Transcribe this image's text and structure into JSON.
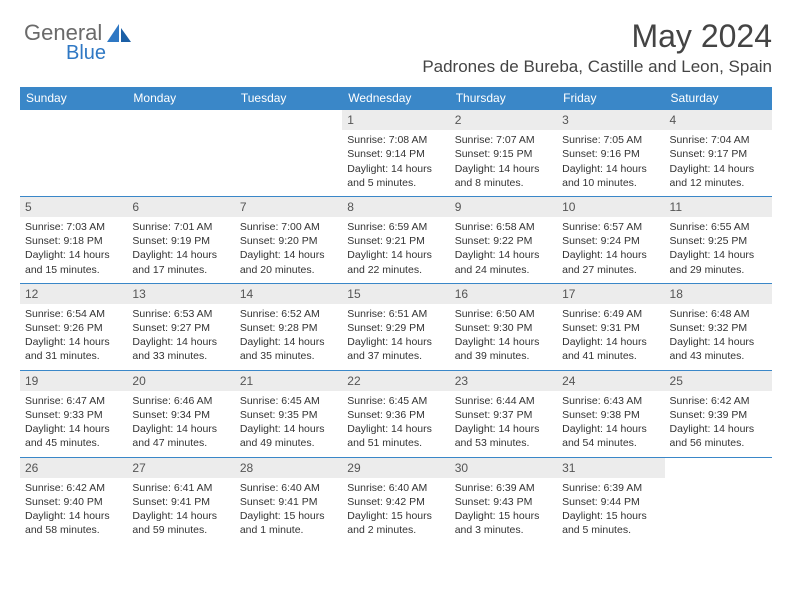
{
  "logo": {
    "text1": "General",
    "text2": "Blue"
  },
  "title": "May 2024",
  "location": "Padrones de Bureba, Castille and Leon, Spain",
  "colors": {
    "header_bg": "#3a87c8",
    "header_text": "#ffffff",
    "daynum_bg": "#ececec",
    "border": "#3a87c8",
    "logo_blue": "#2f78c4"
  },
  "day_names": [
    "Sunday",
    "Monday",
    "Tuesday",
    "Wednesday",
    "Thursday",
    "Friday",
    "Saturday"
  ],
  "weeks": [
    [
      {
        "n": "",
        "empty": true
      },
      {
        "n": "",
        "empty": true
      },
      {
        "n": "",
        "empty": true
      },
      {
        "n": "1",
        "sr": "Sunrise: 7:08 AM",
        "ss": "Sunset: 9:14 PM",
        "d1": "Daylight: 14 hours",
        "d2": "and 5 minutes."
      },
      {
        "n": "2",
        "sr": "Sunrise: 7:07 AM",
        "ss": "Sunset: 9:15 PM",
        "d1": "Daylight: 14 hours",
        "d2": "and 8 minutes."
      },
      {
        "n": "3",
        "sr": "Sunrise: 7:05 AM",
        "ss": "Sunset: 9:16 PM",
        "d1": "Daylight: 14 hours",
        "d2": "and 10 minutes."
      },
      {
        "n": "4",
        "sr": "Sunrise: 7:04 AM",
        "ss": "Sunset: 9:17 PM",
        "d1": "Daylight: 14 hours",
        "d2": "and 12 minutes."
      }
    ],
    [
      {
        "n": "5",
        "sr": "Sunrise: 7:03 AM",
        "ss": "Sunset: 9:18 PM",
        "d1": "Daylight: 14 hours",
        "d2": "and 15 minutes."
      },
      {
        "n": "6",
        "sr": "Sunrise: 7:01 AM",
        "ss": "Sunset: 9:19 PM",
        "d1": "Daylight: 14 hours",
        "d2": "and 17 minutes."
      },
      {
        "n": "7",
        "sr": "Sunrise: 7:00 AM",
        "ss": "Sunset: 9:20 PM",
        "d1": "Daylight: 14 hours",
        "d2": "and 20 minutes."
      },
      {
        "n": "8",
        "sr": "Sunrise: 6:59 AM",
        "ss": "Sunset: 9:21 PM",
        "d1": "Daylight: 14 hours",
        "d2": "and 22 minutes."
      },
      {
        "n": "9",
        "sr": "Sunrise: 6:58 AM",
        "ss": "Sunset: 9:22 PM",
        "d1": "Daylight: 14 hours",
        "d2": "and 24 minutes."
      },
      {
        "n": "10",
        "sr": "Sunrise: 6:57 AM",
        "ss": "Sunset: 9:24 PM",
        "d1": "Daylight: 14 hours",
        "d2": "and 27 minutes."
      },
      {
        "n": "11",
        "sr": "Sunrise: 6:55 AM",
        "ss": "Sunset: 9:25 PM",
        "d1": "Daylight: 14 hours",
        "d2": "and 29 minutes."
      }
    ],
    [
      {
        "n": "12",
        "sr": "Sunrise: 6:54 AM",
        "ss": "Sunset: 9:26 PM",
        "d1": "Daylight: 14 hours",
        "d2": "and 31 minutes."
      },
      {
        "n": "13",
        "sr": "Sunrise: 6:53 AM",
        "ss": "Sunset: 9:27 PM",
        "d1": "Daylight: 14 hours",
        "d2": "and 33 minutes."
      },
      {
        "n": "14",
        "sr": "Sunrise: 6:52 AM",
        "ss": "Sunset: 9:28 PM",
        "d1": "Daylight: 14 hours",
        "d2": "and 35 minutes."
      },
      {
        "n": "15",
        "sr": "Sunrise: 6:51 AM",
        "ss": "Sunset: 9:29 PM",
        "d1": "Daylight: 14 hours",
        "d2": "and 37 minutes."
      },
      {
        "n": "16",
        "sr": "Sunrise: 6:50 AM",
        "ss": "Sunset: 9:30 PM",
        "d1": "Daylight: 14 hours",
        "d2": "and 39 minutes."
      },
      {
        "n": "17",
        "sr": "Sunrise: 6:49 AM",
        "ss": "Sunset: 9:31 PM",
        "d1": "Daylight: 14 hours",
        "d2": "and 41 minutes."
      },
      {
        "n": "18",
        "sr": "Sunrise: 6:48 AM",
        "ss": "Sunset: 9:32 PM",
        "d1": "Daylight: 14 hours",
        "d2": "and 43 minutes."
      }
    ],
    [
      {
        "n": "19",
        "sr": "Sunrise: 6:47 AM",
        "ss": "Sunset: 9:33 PM",
        "d1": "Daylight: 14 hours",
        "d2": "and 45 minutes."
      },
      {
        "n": "20",
        "sr": "Sunrise: 6:46 AM",
        "ss": "Sunset: 9:34 PM",
        "d1": "Daylight: 14 hours",
        "d2": "and 47 minutes."
      },
      {
        "n": "21",
        "sr": "Sunrise: 6:45 AM",
        "ss": "Sunset: 9:35 PM",
        "d1": "Daylight: 14 hours",
        "d2": "and 49 minutes."
      },
      {
        "n": "22",
        "sr": "Sunrise: 6:45 AM",
        "ss": "Sunset: 9:36 PM",
        "d1": "Daylight: 14 hours",
        "d2": "and 51 minutes."
      },
      {
        "n": "23",
        "sr": "Sunrise: 6:44 AM",
        "ss": "Sunset: 9:37 PM",
        "d1": "Daylight: 14 hours",
        "d2": "and 53 minutes."
      },
      {
        "n": "24",
        "sr": "Sunrise: 6:43 AM",
        "ss": "Sunset: 9:38 PM",
        "d1": "Daylight: 14 hours",
        "d2": "and 54 minutes."
      },
      {
        "n": "25",
        "sr": "Sunrise: 6:42 AM",
        "ss": "Sunset: 9:39 PM",
        "d1": "Daylight: 14 hours",
        "d2": "and 56 minutes."
      }
    ],
    [
      {
        "n": "26",
        "sr": "Sunrise: 6:42 AM",
        "ss": "Sunset: 9:40 PM",
        "d1": "Daylight: 14 hours",
        "d2": "and 58 minutes."
      },
      {
        "n": "27",
        "sr": "Sunrise: 6:41 AM",
        "ss": "Sunset: 9:41 PM",
        "d1": "Daylight: 14 hours",
        "d2": "and 59 minutes."
      },
      {
        "n": "28",
        "sr": "Sunrise: 6:40 AM",
        "ss": "Sunset: 9:41 PM",
        "d1": "Daylight: 15 hours",
        "d2": "and 1 minute."
      },
      {
        "n": "29",
        "sr": "Sunrise: 6:40 AM",
        "ss": "Sunset: 9:42 PM",
        "d1": "Daylight: 15 hours",
        "d2": "and 2 minutes."
      },
      {
        "n": "30",
        "sr": "Sunrise: 6:39 AM",
        "ss": "Sunset: 9:43 PM",
        "d1": "Daylight: 15 hours",
        "d2": "and 3 minutes."
      },
      {
        "n": "31",
        "sr": "Sunrise: 6:39 AM",
        "ss": "Sunset: 9:44 PM",
        "d1": "Daylight: 15 hours",
        "d2": "and 5 minutes."
      },
      {
        "n": "",
        "empty": true
      }
    ]
  ]
}
